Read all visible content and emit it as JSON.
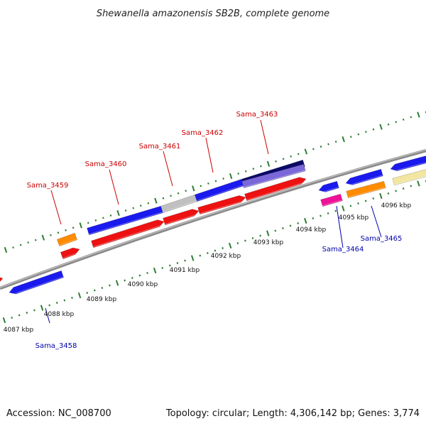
{
  "title": "Shewanella amazonensis SB2B, complete genome",
  "footer": {
    "accession": "Accession: NC_008700",
    "stats": "Topology: circular; Length: 4,306,142 bp; Genes: 3,774"
  },
  "colors": {
    "forward_label": "#cc0000",
    "reverse_label": "#0000aa",
    "tick": "#2e7d32",
    "backbone": "#8a8a8a",
    "blue_gene": "#1a1aee",
    "red_gene": "#ee1111",
    "orange_gene": "#ff8c00",
    "grey_gene": "#c0c0c0",
    "navy_gene": "#0a0a66",
    "lavender_gene": "#7b68d8",
    "magenta_gene": "#ee1199",
    "yellow_gene": "#f2e6a0"
  },
  "scale": {
    "unit": "kbp",
    "labels": [
      "4087 kbp",
      "4088 kbp",
      "4089 kbp",
      "4090 kbp",
      "4091 kbp",
      "4092 kbp",
      "4093 kbp",
      "4094 kbp",
      "4095 kbp",
      "4096 kbp"
    ]
  },
  "genes": [
    {
      "name": "Sama_3458",
      "strand": "reverse"
    },
    {
      "name": "Sama_3459",
      "strand": "forward"
    },
    {
      "name": "Sama_3460",
      "strand": "forward"
    },
    {
      "name": "Sama_3461",
      "strand": "forward"
    },
    {
      "name": "Sama_3462",
      "strand": "forward"
    },
    {
      "name": "Sama_3463",
      "strand": "forward"
    },
    {
      "name": "Sama_3464",
      "strand": "reverse"
    },
    {
      "name": "Sama_3465",
      "strand": "reverse"
    }
  ]
}
